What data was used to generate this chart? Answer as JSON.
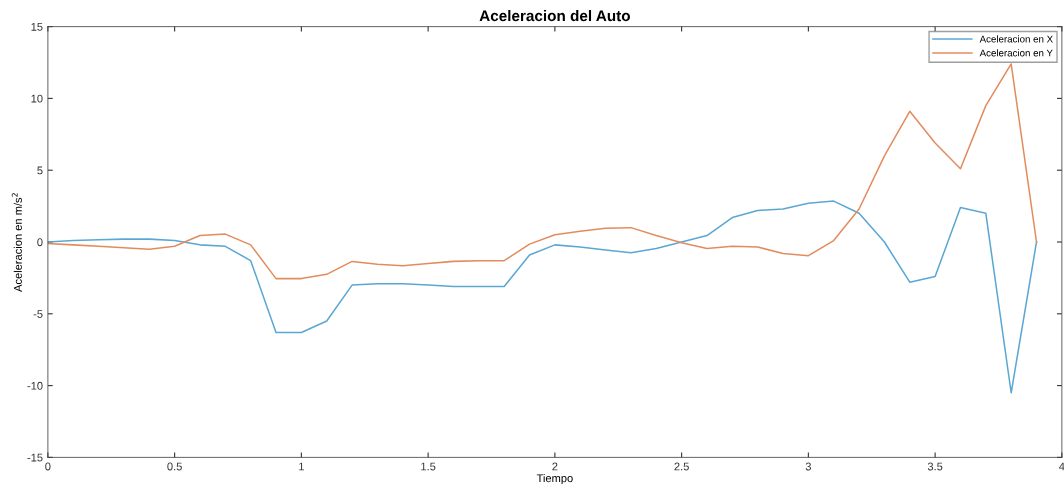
{
  "chart_data": {
    "type": "line",
    "title": "Aceleracion del Auto",
    "xlabel": "Tiempo",
    "ylabel": "Aceleracion en m/s$^{2}$",
    "x": [
      0,
      0.1,
      0.2,
      0.3,
      0.4,
      0.5,
      0.6,
      0.7,
      0.8,
      0.9,
      1.0,
      1.1,
      1.2,
      1.3,
      1.4,
      1.5,
      1.6,
      1.7,
      1.8,
      1.9,
      2.0,
      2.1,
      2.2,
      2.3,
      2.4,
      2.5,
      2.6,
      2.7,
      2.8,
      2.9,
      3.0,
      3.1,
      3.2,
      3.3,
      3.4,
      3.5,
      3.6,
      3.7,
      3.8,
      3.9
    ],
    "series": [
      {
        "name": "Aceleracion en X",
        "color": "#5ba7d3",
        "values": [
          0,
          0.1,
          0.15,
          0.2,
          0.2,
          0.1,
          -0.2,
          -0.3,
          -1.3,
          -6.3,
          -6.3,
          -5.5,
          -3.0,
          -2.9,
          -2.9,
          -3.0,
          -3.1,
          -3.1,
          -3.1,
          -0.9,
          -0.2,
          -0.35,
          -0.55,
          -0.75,
          -0.45,
          0,
          0.45,
          1.7,
          2.2,
          2.3,
          2.7,
          2.85,
          2.0,
          0,
          -2.8,
          -2.4,
          2.4,
          2.0,
          -10.5,
          0
        ]
      },
      {
        "name": "Aceleracion en Y",
        "color": "#e28c5e",
        "values": [
          -0.1,
          -0.2,
          -0.3,
          -0.4,
          -0.5,
          -0.3,
          0.45,
          0.55,
          -0.2,
          -2.55,
          -2.55,
          -2.25,
          -1.35,
          -1.55,
          -1.65,
          -1.5,
          -1.35,
          -1.3,
          -1.3,
          -0.15,
          0.5,
          0.75,
          0.95,
          1.0,
          0.45,
          -0.05,
          -0.45,
          -0.3,
          -0.35,
          -0.8,
          -0.95,
          0.1,
          2.3,
          6.0,
          9.1,
          6.9,
          5.1,
          9.5,
          12.4,
          0
        ]
      }
    ],
    "xlim": [
      0,
      4
    ],
    "xticks": [
      0,
      0.5,
      1,
      1.5,
      2,
      2.5,
      3,
      3.5,
      4
    ],
    "ylim": [
      -15,
      15
    ],
    "yticks": [
      -15,
      -10,
      -5,
      0,
      5,
      10,
      15
    ],
    "grid": false,
    "legend": "top right",
    "line_style": "solid",
    "marker": "none"
  }
}
